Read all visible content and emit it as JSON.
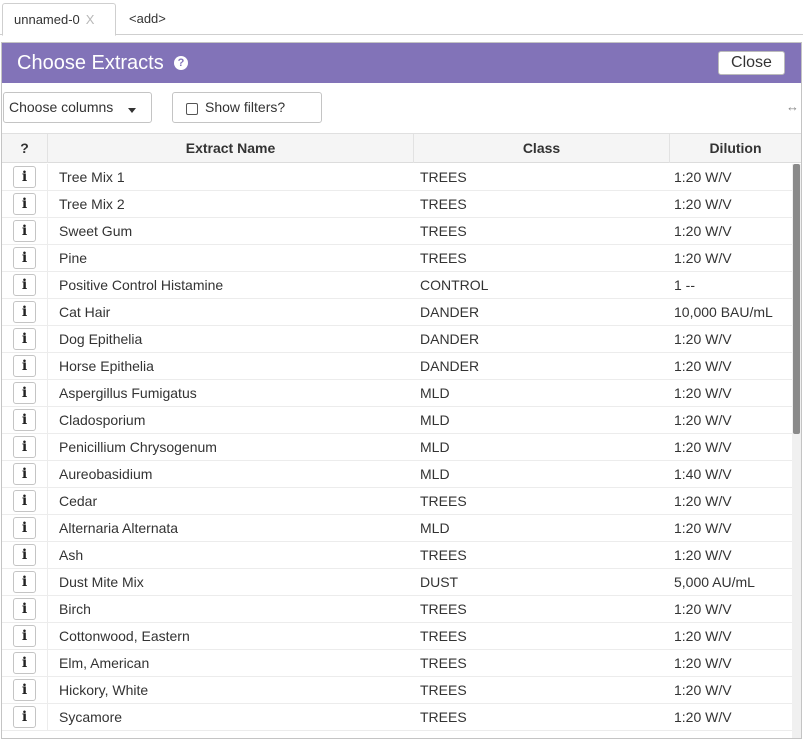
{
  "tabs": [
    {
      "label": "unnamed-0",
      "close": "X"
    },
    {
      "label": "<add>"
    }
  ],
  "dialog": {
    "title": "Choose Extracts",
    "help_icon": "question-circle-icon",
    "close_label": "Close"
  },
  "toolbar": {
    "choose_columns_label": "Choose columns",
    "show_filters_label": "Show filters?",
    "show_filters_checked": false
  },
  "grid": {
    "columns": [
      "?",
      "Extract Name",
      "Class",
      "Dilution"
    ],
    "rows": [
      {
        "name": "Tree Mix 1",
        "class": "TREES",
        "dilution": "1:20 W/V"
      },
      {
        "name": "Tree Mix 2",
        "class": "TREES",
        "dilution": "1:20 W/V"
      },
      {
        "name": "Sweet Gum",
        "class": "TREES",
        "dilution": "1:20 W/V"
      },
      {
        "name": "Pine",
        "class": "TREES",
        "dilution": "1:20 W/V"
      },
      {
        "name": "Positive Control Histamine",
        "class": "CONTROL",
        "dilution": "1 --"
      },
      {
        "name": "Cat Hair",
        "class": "DANDER",
        "dilution": "10,000 BAU/mL"
      },
      {
        "name": "Dog Epithelia",
        "class": "DANDER",
        "dilution": "1:20 W/V"
      },
      {
        "name": "Horse Epithelia",
        "class": "DANDER",
        "dilution": "1:20 W/V"
      },
      {
        "name": "Aspergillus Fumigatus",
        "class": "MLD",
        "dilution": "1:20 W/V"
      },
      {
        "name": "Cladosporium",
        "class": "MLD",
        "dilution": "1:20 W/V"
      },
      {
        "name": "Penicillium Chrysogenum",
        "class": "MLD",
        "dilution": "1:20 W/V"
      },
      {
        "name": "Aureobasidium",
        "class": "MLD",
        "dilution": "1:40 W/V"
      },
      {
        "name": "Cedar",
        "class": "TREES",
        "dilution": "1:20 W/V"
      },
      {
        "name": "Alternaria Alternata",
        "class": "MLD",
        "dilution": "1:20 W/V"
      },
      {
        "name": "Ash",
        "class": "TREES",
        "dilution": "1:20 W/V"
      },
      {
        "name": "Dust Mite Mix",
        "class": "DUST",
        "dilution": "5,000 AU/mL"
      },
      {
        "name": "Birch",
        "class": "TREES",
        "dilution": "1:20 W/V"
      },
      {
        "name": "Cottonwood, Eastern",
        "class": "TREES",
        "dilution": "1:20 W/V"
      },
      {
        "name": "Elm, American",
        "class": "TREES",
        "dilution": "1:20 W/V"
      },
      {
        "name": "Hickory, White",
        "class": "TREES",
        "dilution": "1:20 W/V"
      },
      {
        "name": "Sycamore",
        "class": "TREES",
        "dilution": "1:20 W/V"
      }
    ],
    "row_info_icon": "info-icon",
    "info_glyph": "i"
  },
  "colors": {
    "header_purple": "#8273b8",
    "grid_header_bg": "#f5f5f5"
  }
}
